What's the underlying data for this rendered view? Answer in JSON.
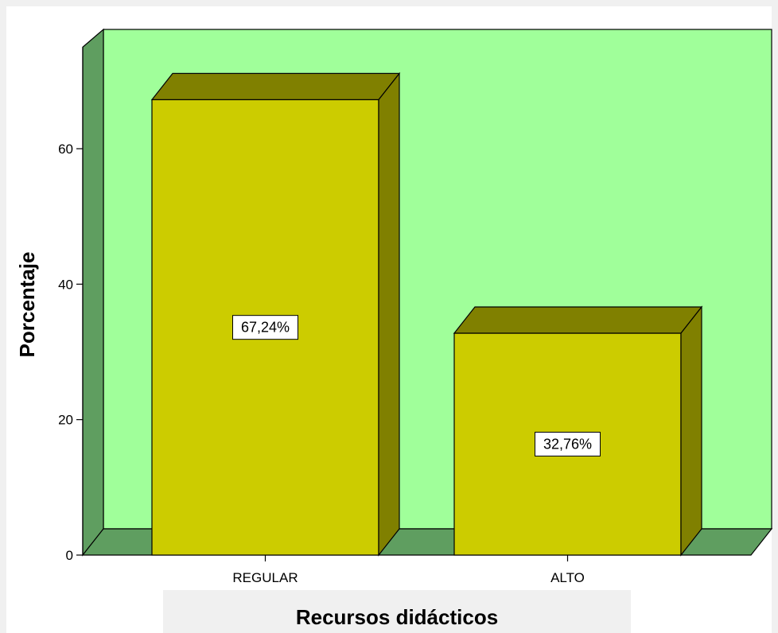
{
  "chart_data": {
    "type": "bar",
    "categories": [
      "REGULAR",
      "ALTO"
    ],
    "values": [
      67.24,
      32.76
    ],
    "data_labels": [
      "67,24%",
      "32,76%"
    ],
    "xlabel": "Recursos didácticos",
    "ylabel": "Porcentaje",
    "ylim": [
      0,
      75
    ],
    "yticks": [
      0,
      20,
      40,
      60
    ],
    "three_d": true,
    "grid": false,
    "legend": "none",
    "colors": {
      "wall": "#a0ff9a",
      "floor": "#5f9e60",
      "side_wall": "#5f9e60",
      "bar_front": "#cccc00",
      "bar_top_side": "#808000",
      "page_background": "#f0f0f0",
      "plot_background": "#ffffff"
    }
  }
}
